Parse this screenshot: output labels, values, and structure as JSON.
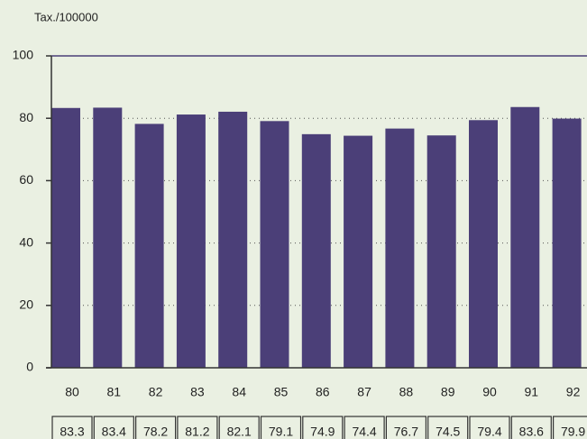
{
  "chart_data": {
    "type": "bar",
    "title": "Tax./100000",
    "categories": [
      "80",
      "81",
      "82",
      "83",
      "84",
      "85",
      "86",
      "87",
      "88",
      "89",
      "90",
      "91",
      "92"
    ],
    "values": [
      83.3,
      83.4,
      78.2,
      81.2,
      82.1,
      79.1,
      74.9,
      74.4,
      76.7,
      74.5,
      79.4,
      83.6,
      79.9
    ],
    "color": "#4b3f78",
    "ylim": [
      0,
      100
    ],
    "yticks": [
      0,
      20,
      40,
      60,
      80,
      100
    ],
    "grid": true
  }
}
